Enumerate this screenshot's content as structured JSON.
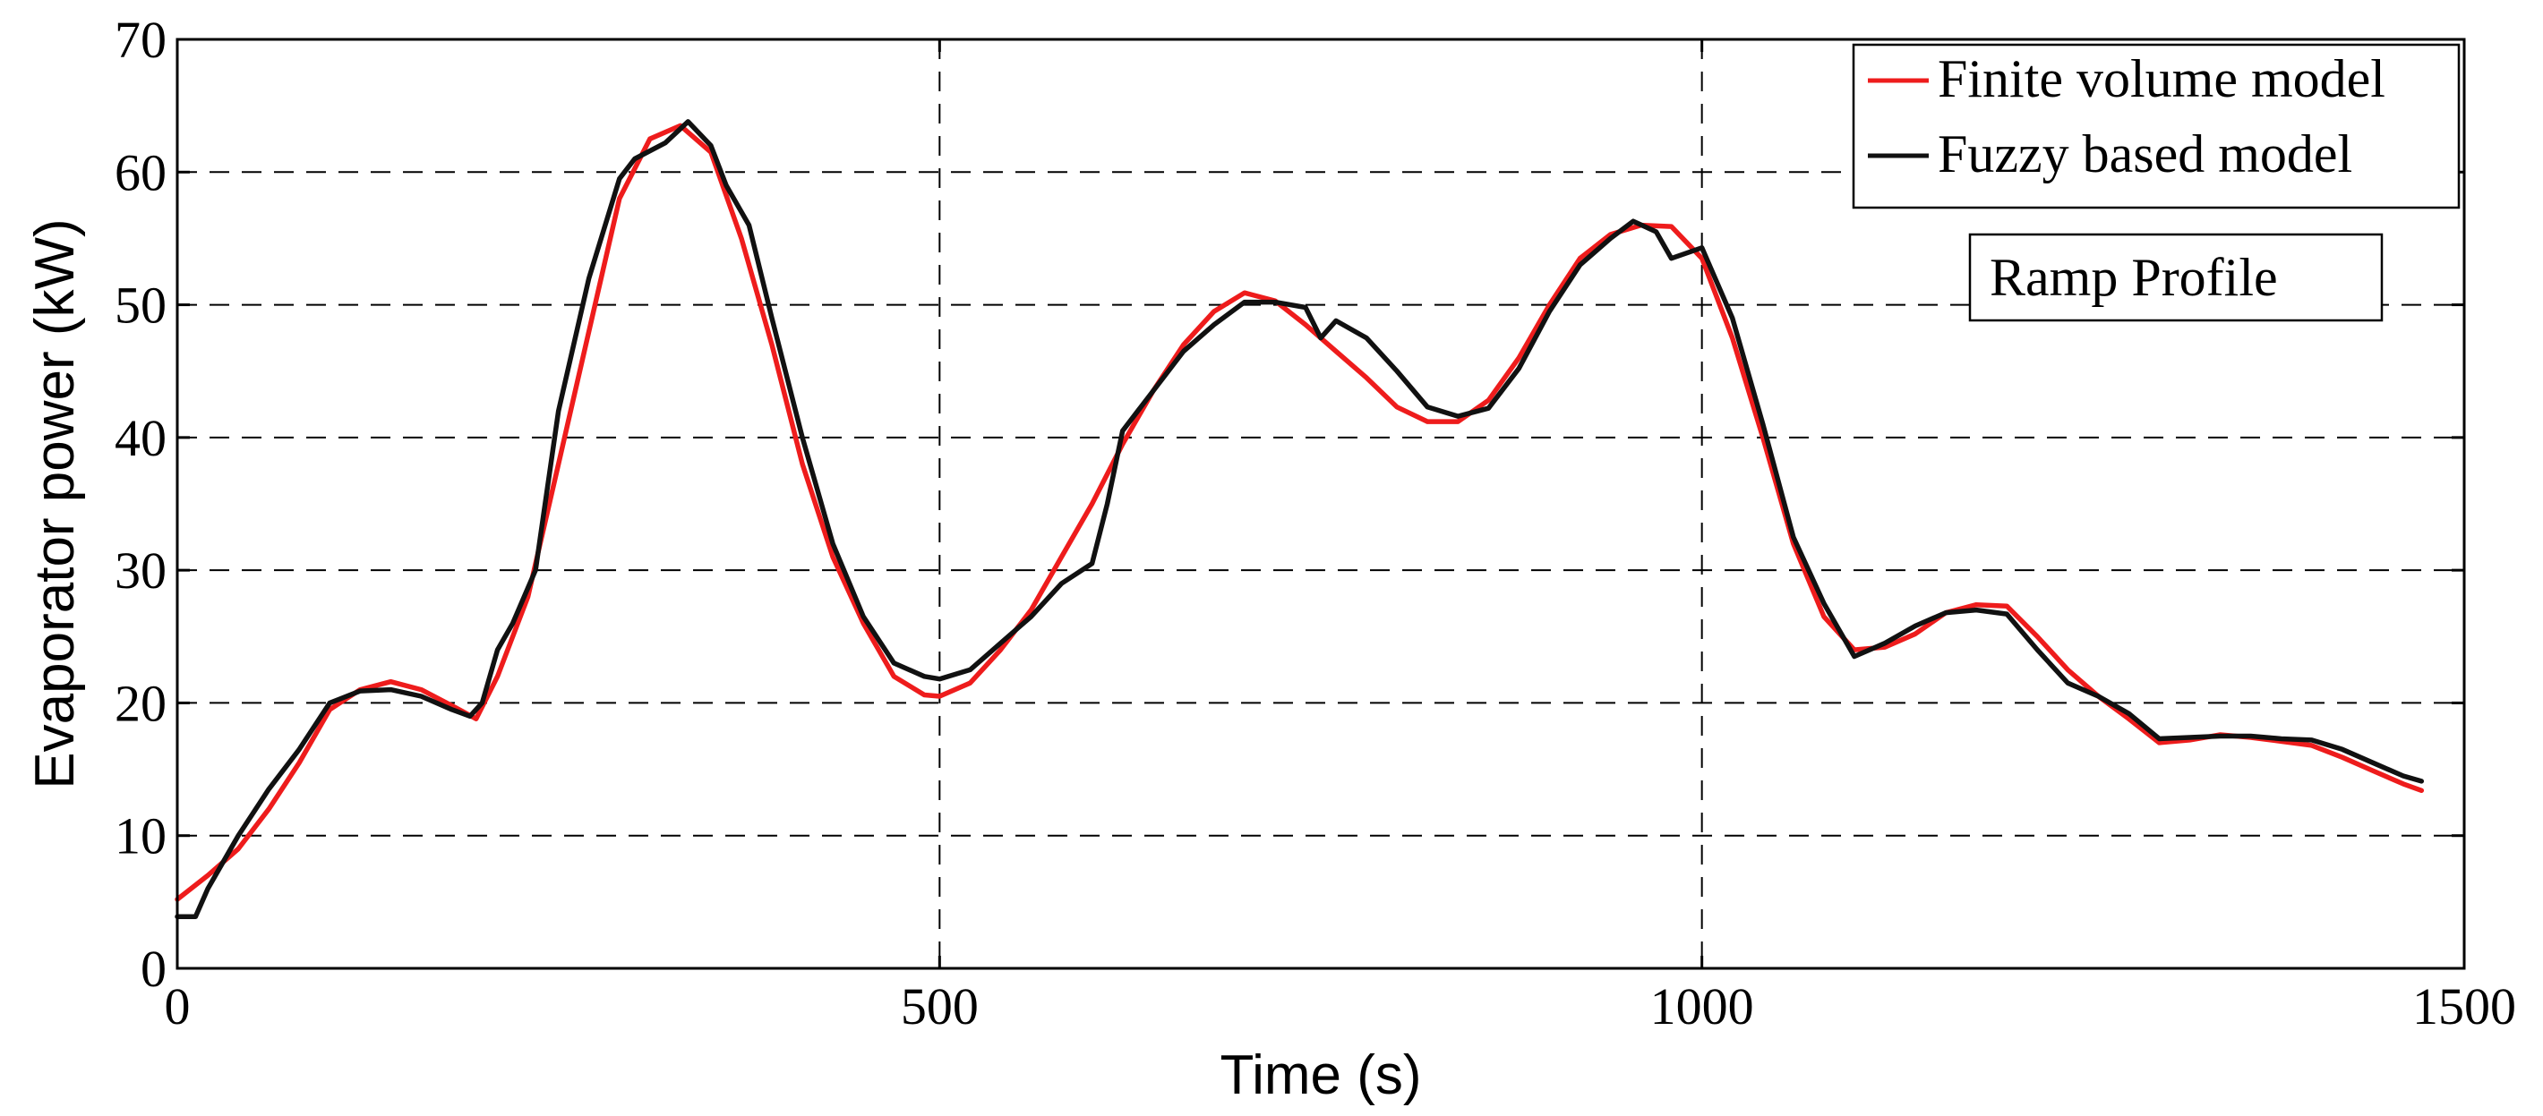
{
  "chart_data": {
    "type": "line",
    "xlabel": "Time (s)",
    "ylabel": "Evaporator power (kW)",
    "xlim": [
      0,
      1500
    ],
    "ylim": [
      0,
      70
    ],
    "x_ticks": [
      "0",
      "500",
      "1000",
      "1500"
    ],
    "y_ticks": [
      "0",
      "10",
      "20",
      "30",
      "40",
      "50",
      "60",
      "70"
    ],
    "x_grid": [
      500,
      1000
    ],
    "y_grid": [
      10,
      20,
      30,
      40,
      50,
      60
    ],
    "grid": "dashed",
    "legend_position": "top-right",
    "annotation": "Ramp Profile",
    "series": [
      {
        "name": "Finite volume model",
        "color": "#ee1c1c",
        "points": [
          [
            0,
            5.2
          ],
          [
            20,
            7
          ],
          [
            40,
            9
          ],
          [
            60,
            12
          ],
          [
            80,
            15.5
          ],
          [
            100,
            19.5
          ],
          [
            120,
            21
          ],
          [
            140,
            21.6
          ],
          [
            160,
            21
          ],
          [
            180,
            19.8
          ],
          [
            196,
            18.8
          ],
          [
            210,
            22
          ],
          [
            230,
            28
          ],
          [
            250,
            38
          ],
          [
            270,
            48
          ],
          [
            290,
            58
          ],
          [
            310,
            62.5
          ],
          [
            330,
            63.5
          ],
          [
            350,
            61.5
          ],
          [
            370,
            55
          ],
          [
            390,
            47
          ],
          [
            410,
            38
          ],
          [
            430,
            31
          ],
          [
            450,
            26
          ],
          [
            470,
            22
          ],
          [
            490,
            20.6
          ],
          [
            500,
            20.5
          ],
          [
            520,
            21.5
          ],
          [
            540,
            24
          ],
          [
            560,
            27
          ],
          [
            580,
            31
          ],
          [
            600,
            35
          ],
          [
            620,
            39.5
          ],
          [
            640,
            43.5
          ],
          [
            660,
            47
          ],
          [
            680,
            49.5
          ],
          [
            700,
            50.9
          ],
          [
            720,
            50.3
          ],
          [
            740,
            48.5
          ],
          [
            760,
            46.5
          ],
          [
            780,
            44.5
          ],
          [
            800,
            42.3
          ],
          [
            820,
            41.2
          ],
          [
            840,
            41.2
          ],
          [
            860,
            42.8
          ],
          [
            880,
            46
          ],
          [
            900,
            50
          ],
          [
            920,
            53.5
          ],
          [
            940,
            55.3
          ],
          [
            960,
            56
          ],
          [
            980,
            55.9
          ],
          [
            1000,
            53.5
          ],
          [
            1020,
            47.5
          ],
          [
            1040,
            40
          ],
          [
            1060,
            32
          ],
          [
            1080,
            26.5
          ],
          [
            1100,
            24
          ],
          [
            1120,
            24.2
          ],
          [
            1140,
            25.2
          ],
          [
            1160,
            26.8
          ],
          [
            1180,
            27.4
          ],
          [
            1200,
            27.3
          ],
          [
            1220,
            25
          ],
          [
            1240,
            22.5
          ],
          [
            1260,
            20.5
          ],
          [
            1280,
            18.8
          ],
          [
            1300,
            17
          ],
          [
            1320,
            17.2
          ],
          [
            1340,
            17.6
          ],
          [
            1360,
            17.4
          ],
          [
            1380,
            17.1
          ],
          [
            1400,
            16.8
          ],
          [
            1420,
            15.9
          ],
          [
            1440,
            14.9
          ],
          [
            1460,
            13.9
          ],
          [
            1472,
            13.4
          ]
        ]
      },
      {
        "name": "Fuzzy based model",
        "color": "#111111",
        "points": [
          [
            0,
            3.9
          ],
          [
            12,
            3.9
          ],
          [
            20,
            6
          ],
          [
            40,
            10
          ],
          [
            60,
            13.5
          ],
          [
            80,
            16.5
          ],
          [
            100,
            20
          ],
          [
            120,
            20.9
          ],
          [
            140,
            21
          ],
          [
            160,
            20.5
          ],
          [
            180,
            19.5
          ],
          [
            192,
            19
          ],
          [
            200,
            20
          ],
          [
            210,
            24
          ],
          [
            220,
            26
          ],
          [
            235,
            30
          ],
          [
            250,
            42
          ],
          [
            270,
            52
          ],
          [
            290,
            59.5
          ],
          [
            300,
            61
          ],
          [
            320,
            62.2
          ],
          [
            335,
            63.8
          ],
          [
            350,
            62
          ],
          [
            360,
            59
          ],
          [
            375,
            56
          ],
          [
            390,
            49
          ],
          [
            410,
            40
          ],
          [
            430,
            32
          ],
          [
            450,
            26.5
          ],
          [
            470,
            23
          ],
          [
            490,
            22
          ],
          [
            500,
            21.8
          ],
          [
            520,
            22.5
          ],
          [
            540,
            24.5
          ],
          [
            560,
            26.5
          ],
          [
            580,
            29
          ],
          [
            600,
            30.5
          ],
          [
            610,
            35
          ],
          [
            620,
            40.5
          ],
          [
            630,
            42
          ],
          [
            640,
            43.5
          ],
          [
            660,
            46.5
          ],
          [
            680,
            48.5
          ],
          [
            700,
            50.2
          ],
          [
            720,
            50.2
          ],
          [
            740,
            49.8
          ],
          [
            750,
            47.5
          ],
          [
            760,
            48.8
          ],
          [
            780,
            47.5
          ],
          [
            800,
            45
          ],
          [
            820,
            42.3
          ],
          [
            840,
            41.6
          ],
          [
            860,
            42.2
          ],
          [
            880,
            45.2
          ],
          [
            900,
            49.5
          ],
          [
            920,
            53
          ],
          [
            940,
            55
          ],
          [
            955,
            56.3
          ],
          [
            970,
            55.5
          ],
          [
            980,
            53.5
          ],
          [
            1000,
            54.3
          ],
          [
            1020,
            49
          ],
          [
            1040,
            41
          ],
          [
            1060,
            32.5
          ],
          [
            1080,
            27.5
          ],
          [
            1100,
            23.5
          ],
          [
            1120,
            24.5
          ],
          [
            1140,
            25.8
          ],
          [
            1160,
            26.8
          ],
          [
            1180,
            27
          ],
          [
            1200,
            26.7
          ],
          [
            1220,
            24
          ],
          [
            1240,
            21.5
          ],
          [
            1260,
            20.5
          ],
          [
            1280,
            19.2
          ],
          [
            1300,
            17.3
          ],
          [
            1320,
            17.4
          ],
          [
            1340,
            17.5
          ],
          [
            1360,
            17.5
          ],
          [
            1380,
            17.3
          ],
          [
            1400,
            17.2
          ],
          [
            1420,
            16.5
          ],
          [
            1440,
            15.5
          ],
          [
            1460,
            14.5
          ],
          [
            1472,
            14.1
          ]
        ]
      }
    ]
  }
}
